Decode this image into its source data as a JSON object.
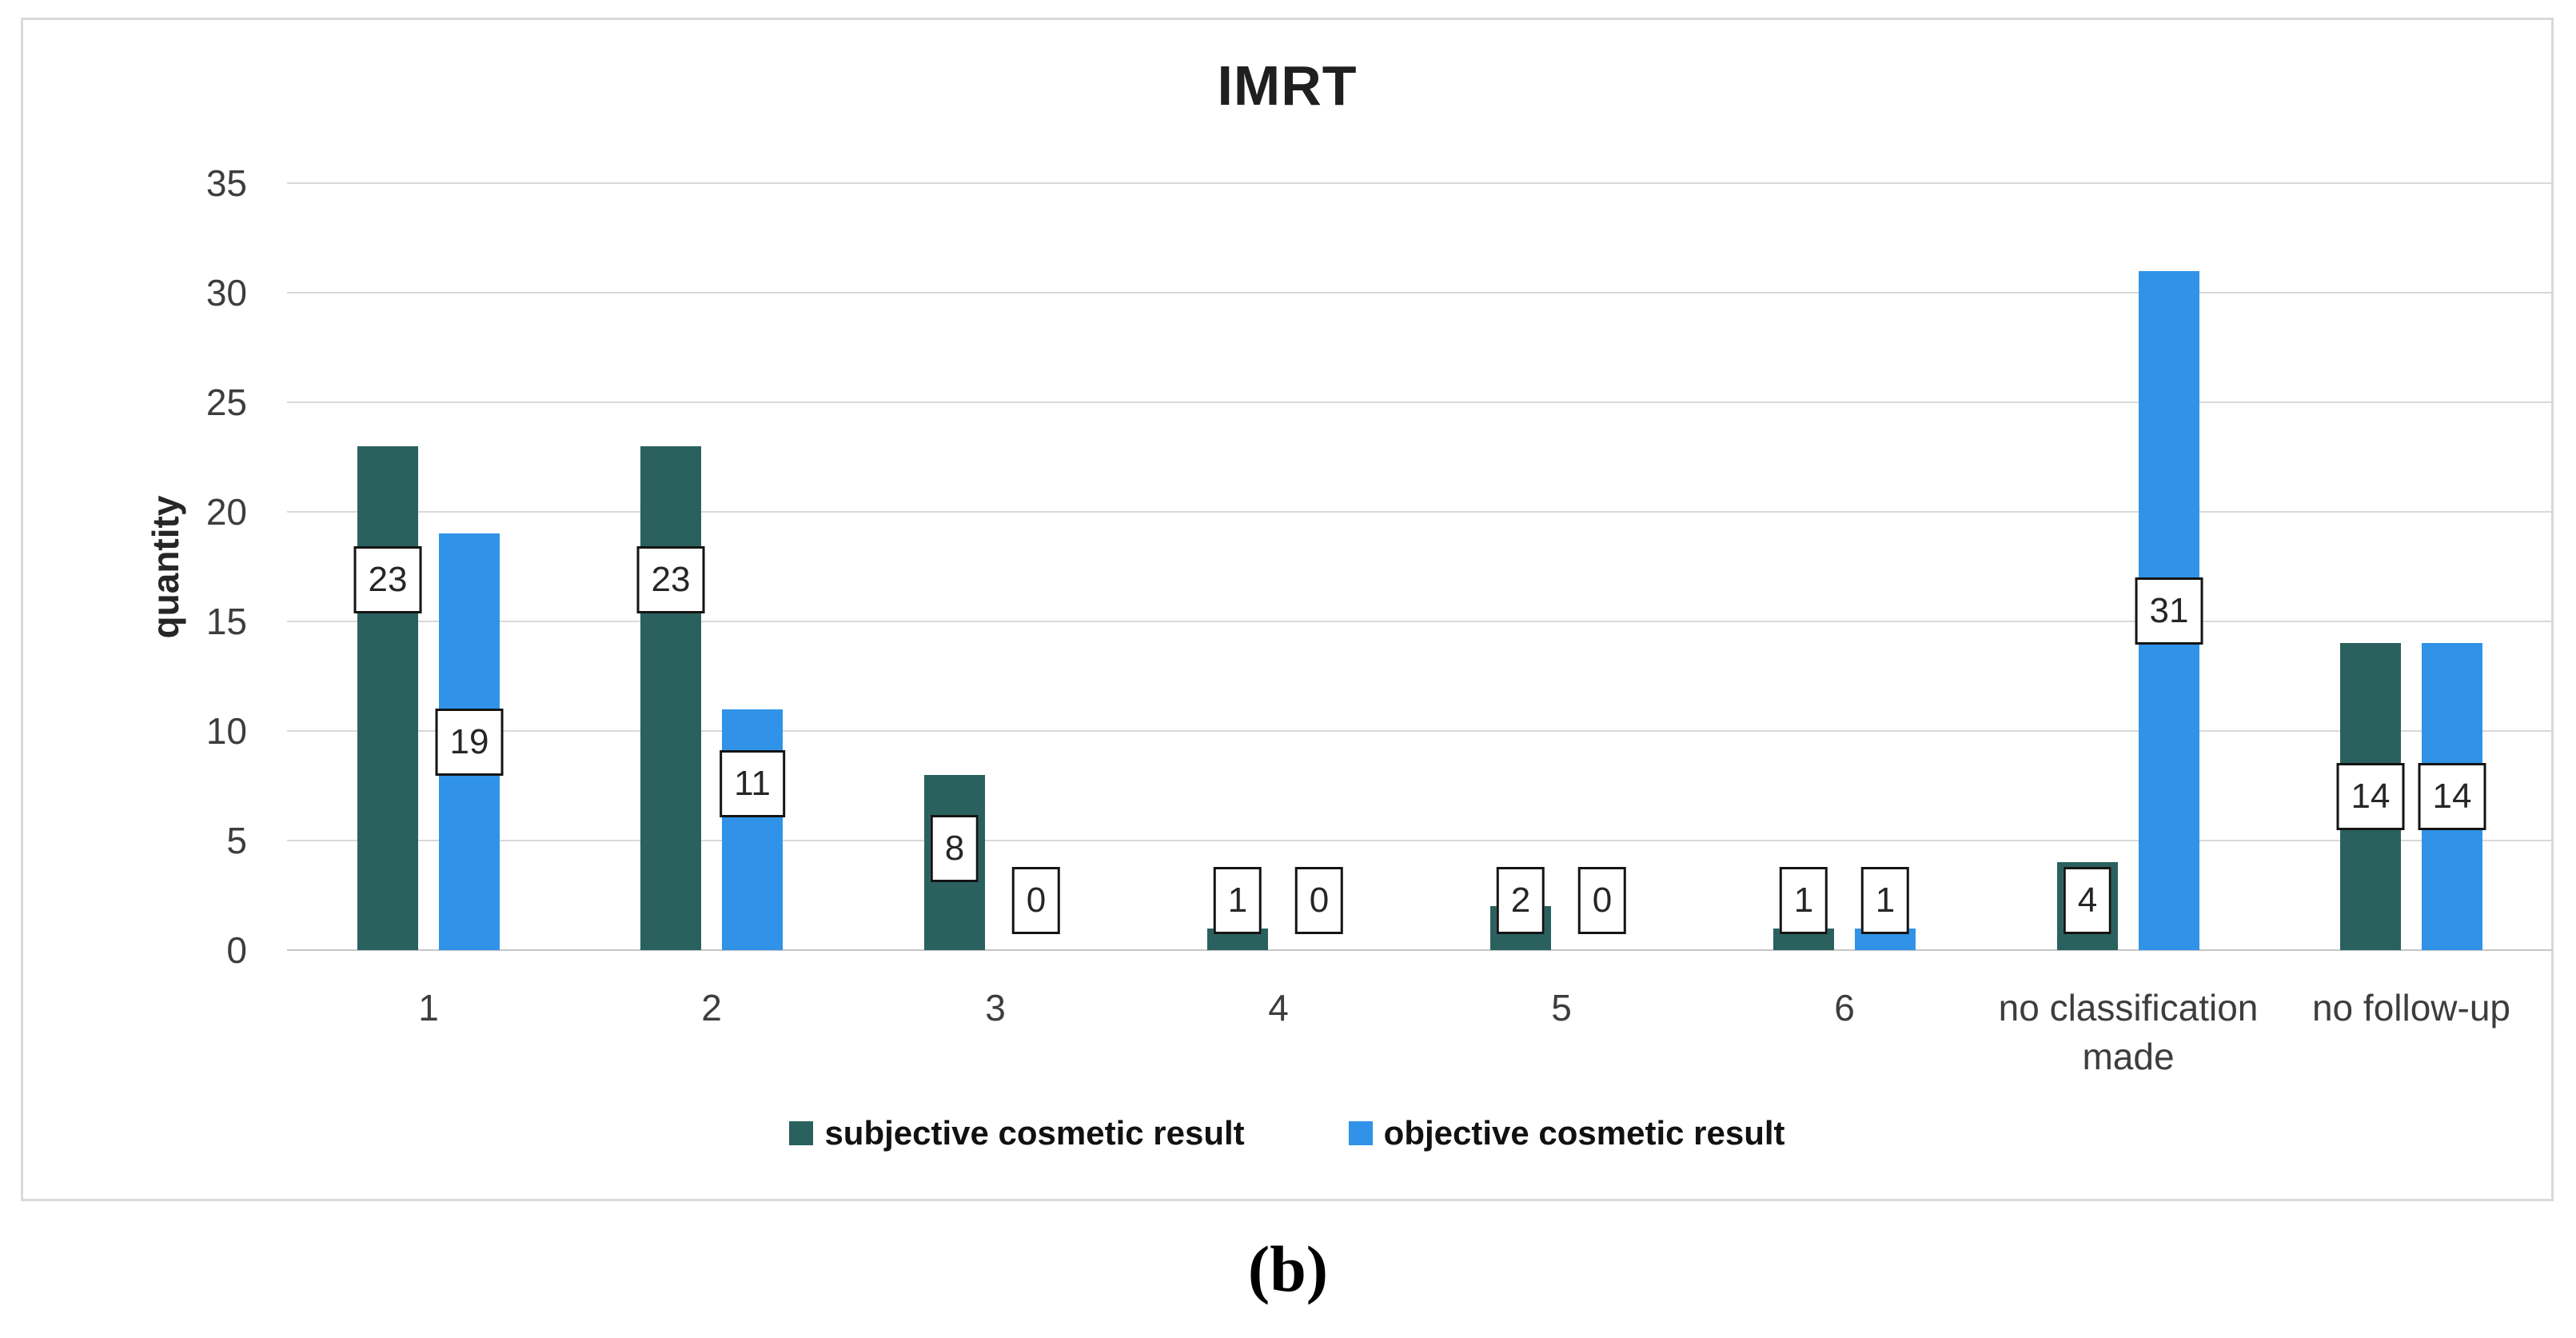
{
  "figure": {
    "caption": "(b)"
  },
  "chart_data": {
    "type": "bar",
    "title": "IMRT",
    "xlabel": "",
    "ylabel": "quantity",
    "ylim": [
      0,
      35
    ],
    "ytick_step": 5,
    "grid": "horizontal gridlines on",
    "legend_position": "bottom",
    "data_labels": "values shown in white boxes with black border",
    "categories": [
      "1",
      "2",
      "3",
      "4",
      "5",
      "6",
      "no classification made",
      "no follow-up"
    ],
    "category_label_lines": [
      [
        "1"
      ],
      [
        "2"
      ],
      [
        "3"
      ],
      [
        "4"
      ],
      [
        "5"
      ],
      [
        "6"
      ],
      [
        "no classification",
        "made"
      ],
      [
        "no follow-up"
      ]
    ],
    "series": [
      {
        "name": "subjective cosmetic result",
        "color": "#2a615f",
        "values": [
          23,
          23,
          8,
          1,
          2,
          1,
          4,
          14
        ]
      },
      {
        "name": "objective cosmetic result",
        "color": "#3093e8",
        "values": [
          19,
          11,
          0,
          0,
          0,
          1,
          31,
          14
        ]
      }
    ]
  },
  "colors": {
    "panel_border": "#d9d9d9",
    "gridline": "#d9d9d9",
    "axis_line": "#c6c6c6",
    "tick_text": "#3d3d3d",
    "title_text": "#1f1f1f",
    "label_box_border": "#141414",
    "background": "#ffffff"
  }
}
